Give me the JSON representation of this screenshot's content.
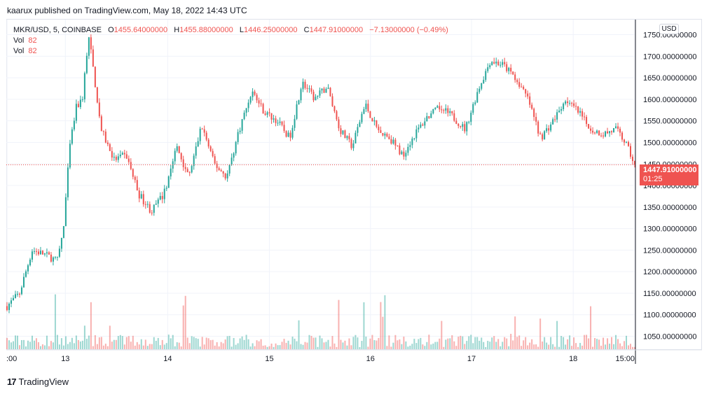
{
  "header": {
    "publish_line": "kaarux published on TradingView.com, May 18, 2022 14:43 UTC"
  },
  "legend": {
    "symbol": "MKR/USD, 5, COINBASE",
    "o_label": "O",
    "o_value": "1455.64000000",
    "h_label": "H",
    "h_value": "1455.88000000",
    "l_label": "L",
    "l_value": "1446.25000000",
    "c_label": "C",
    "c_value": "1447.91000000",
    "change": "−7.13000000 (−0.49%)",
    "vol1_label": "Vol",
    "vol1_value": "82",
    "vol2_label": "Vol",
    "vol2_value": "82"
  },
  "currency": "USD",
  "last_price": {
    "price": "1447.91000000",
    "countdown": "01:25",
    "color": "#ef5350"
  },
  "footer": {
    "brand": "TradingView",
    "logo_text": "17"
  },
  "colors": {
    "up": "#26a69a",
    "down": "#ef5350",
    "grid": "#f0f3fa"
  },
  "chart_data": {
    "type": "candlestick",
    "symbol": "MKR/USD",
    "interval": "5",
    "exchange": "COINBASE",
    "y_axis_ticks": [
      "1750.00000000",
      "1700.00000000",
      "1650.00000000",
      "1600.00000000",
      "1550.00000000",
      "1500.00000000",
      "1450.00000000",
      "1400.00000000",
      "1350.00000000",
      "1300.00000000",
      "1250.00000000",
      "1200.00000000",
      "1150.00000000",
      "1100.00000000",
      "1050.00000000"
    ],
    "ylim": [
      1020,
      1785
    ],
    "x_axis_ticks": [
      ":00",
      "13",
      "14",
      "15",
      "16",
      "17",
      "18",
      "15:00"
    ],
    "price_path": [
      {
        "x": 0.0,
        "y": 1120
      },
      {
        "x": 0.02,
        "y": 1150
      },
      {
        "x": 0.04,
        "y": 1250
      },
      {
        "x": 0.06,
        "y": 1240
      },
      {
        "x": 0.08,
        "y": 1225
      },
      {
        "x": 0.09,
        "y": 1300
      },
      {
        "x": 0.1,
        "y": 1490
      },
      {
        "x": 0.11,
        "y": 1580
      },
      {
        "x": 0.12,
        "y": 1600
      },
      {
        "x": 0.13,
        "y": 1750
      },
      {
        "x": 0.15,
        "y": 1530
      },
      {
        "x": 0.17,
        "y": 1460
      },
      {
        "x": 0.19,
        "y": 1470
      },
      {
        "x": 0.21,
        "y": 1380
      },
      {
        "x": 0.23,
        "y": 1340
      },
      {
        "x": 0.25,
        "y": 1380
      },
      {
        "x": 0.27,
        "y": 1490
      },
      {
        "x": 0.29,
        "y": 1420
      },
      {
        "x": 0.31,
        "y": 1540
      },
      {
        "x": 0.33,
        "y": 1450
      },
      {
        "x": 0.35,
        "y": 1420
      },
      {
        "x": 0.37,
        "y": 1530
      },
      {
        "x": 0.39,
        "y": 1620
      },
      {
        "x": 0.41,
        "y": 1570
      },
      {
        "x": 0.43,
        "y": 1550
      },
      {
        "x": 0.45,
        "y": 1510
      },
      {
        "x": 0.47,
        "y": 1640
      },
      {
        "x": 0.49,
        "y": 1600
      },
      {
        "x": 0.51,
        "y": 1630
      },
      {
        "x": 0.53,
        "y": 1530
      },
      {
        "x": 0.55,
        "y": 1490
      },
      {
        "x": 0.57,
        "y": 1590
      },
      {
        "x": 0.59,
        "y": 1530
      },
      {
        "x": 0.61,
        "y": 1510
      },
      {
        "x": 0.63,
        "y": 1470
      },
      {
        "x": 0.65,
        "y": 1520
      },
      {
        "x": 0.67,
        "y": 1560
      },
      {
        "x": 0.69,
        "y": 1580
      },
      {
        "x": 0.71,
        "y": 1560
      },
      {
        "x": 0.73,
        "y": 1530
      },
      {
        "x": 0.75,
        "y": 1620
      },
      {
        "x": 0.77,
        "y": 1690
      },
      {
        "x": 0.79,
        "y": 1680
      },
      {
        "x": 0.81,
        "y": 1650
      },
      {
        "x": 0.83,
        "y": 1600
      },
      {
        "x": 0.85,
        "y": 1510
      },
      {
        "x": 0.87,
        "y": 1550
      },
      {
        "x": 0.89,
        "y": 1600
      },
      {
        "x": 0.91,
        "y": 1570
      },
      {
        "x": 0.93,
        "y": 1530
      },
      {
        "x": 0.95,
        "y": 1520
      },
      {
        "x": 0.97,
        "y": 1530
      },
      {
        "x": 0.985,
        "y": 1500
      },
      {
        "x": 1.0,
        "y": 1448
      }
    ],
    "last_price": 1447.91
  }
}
